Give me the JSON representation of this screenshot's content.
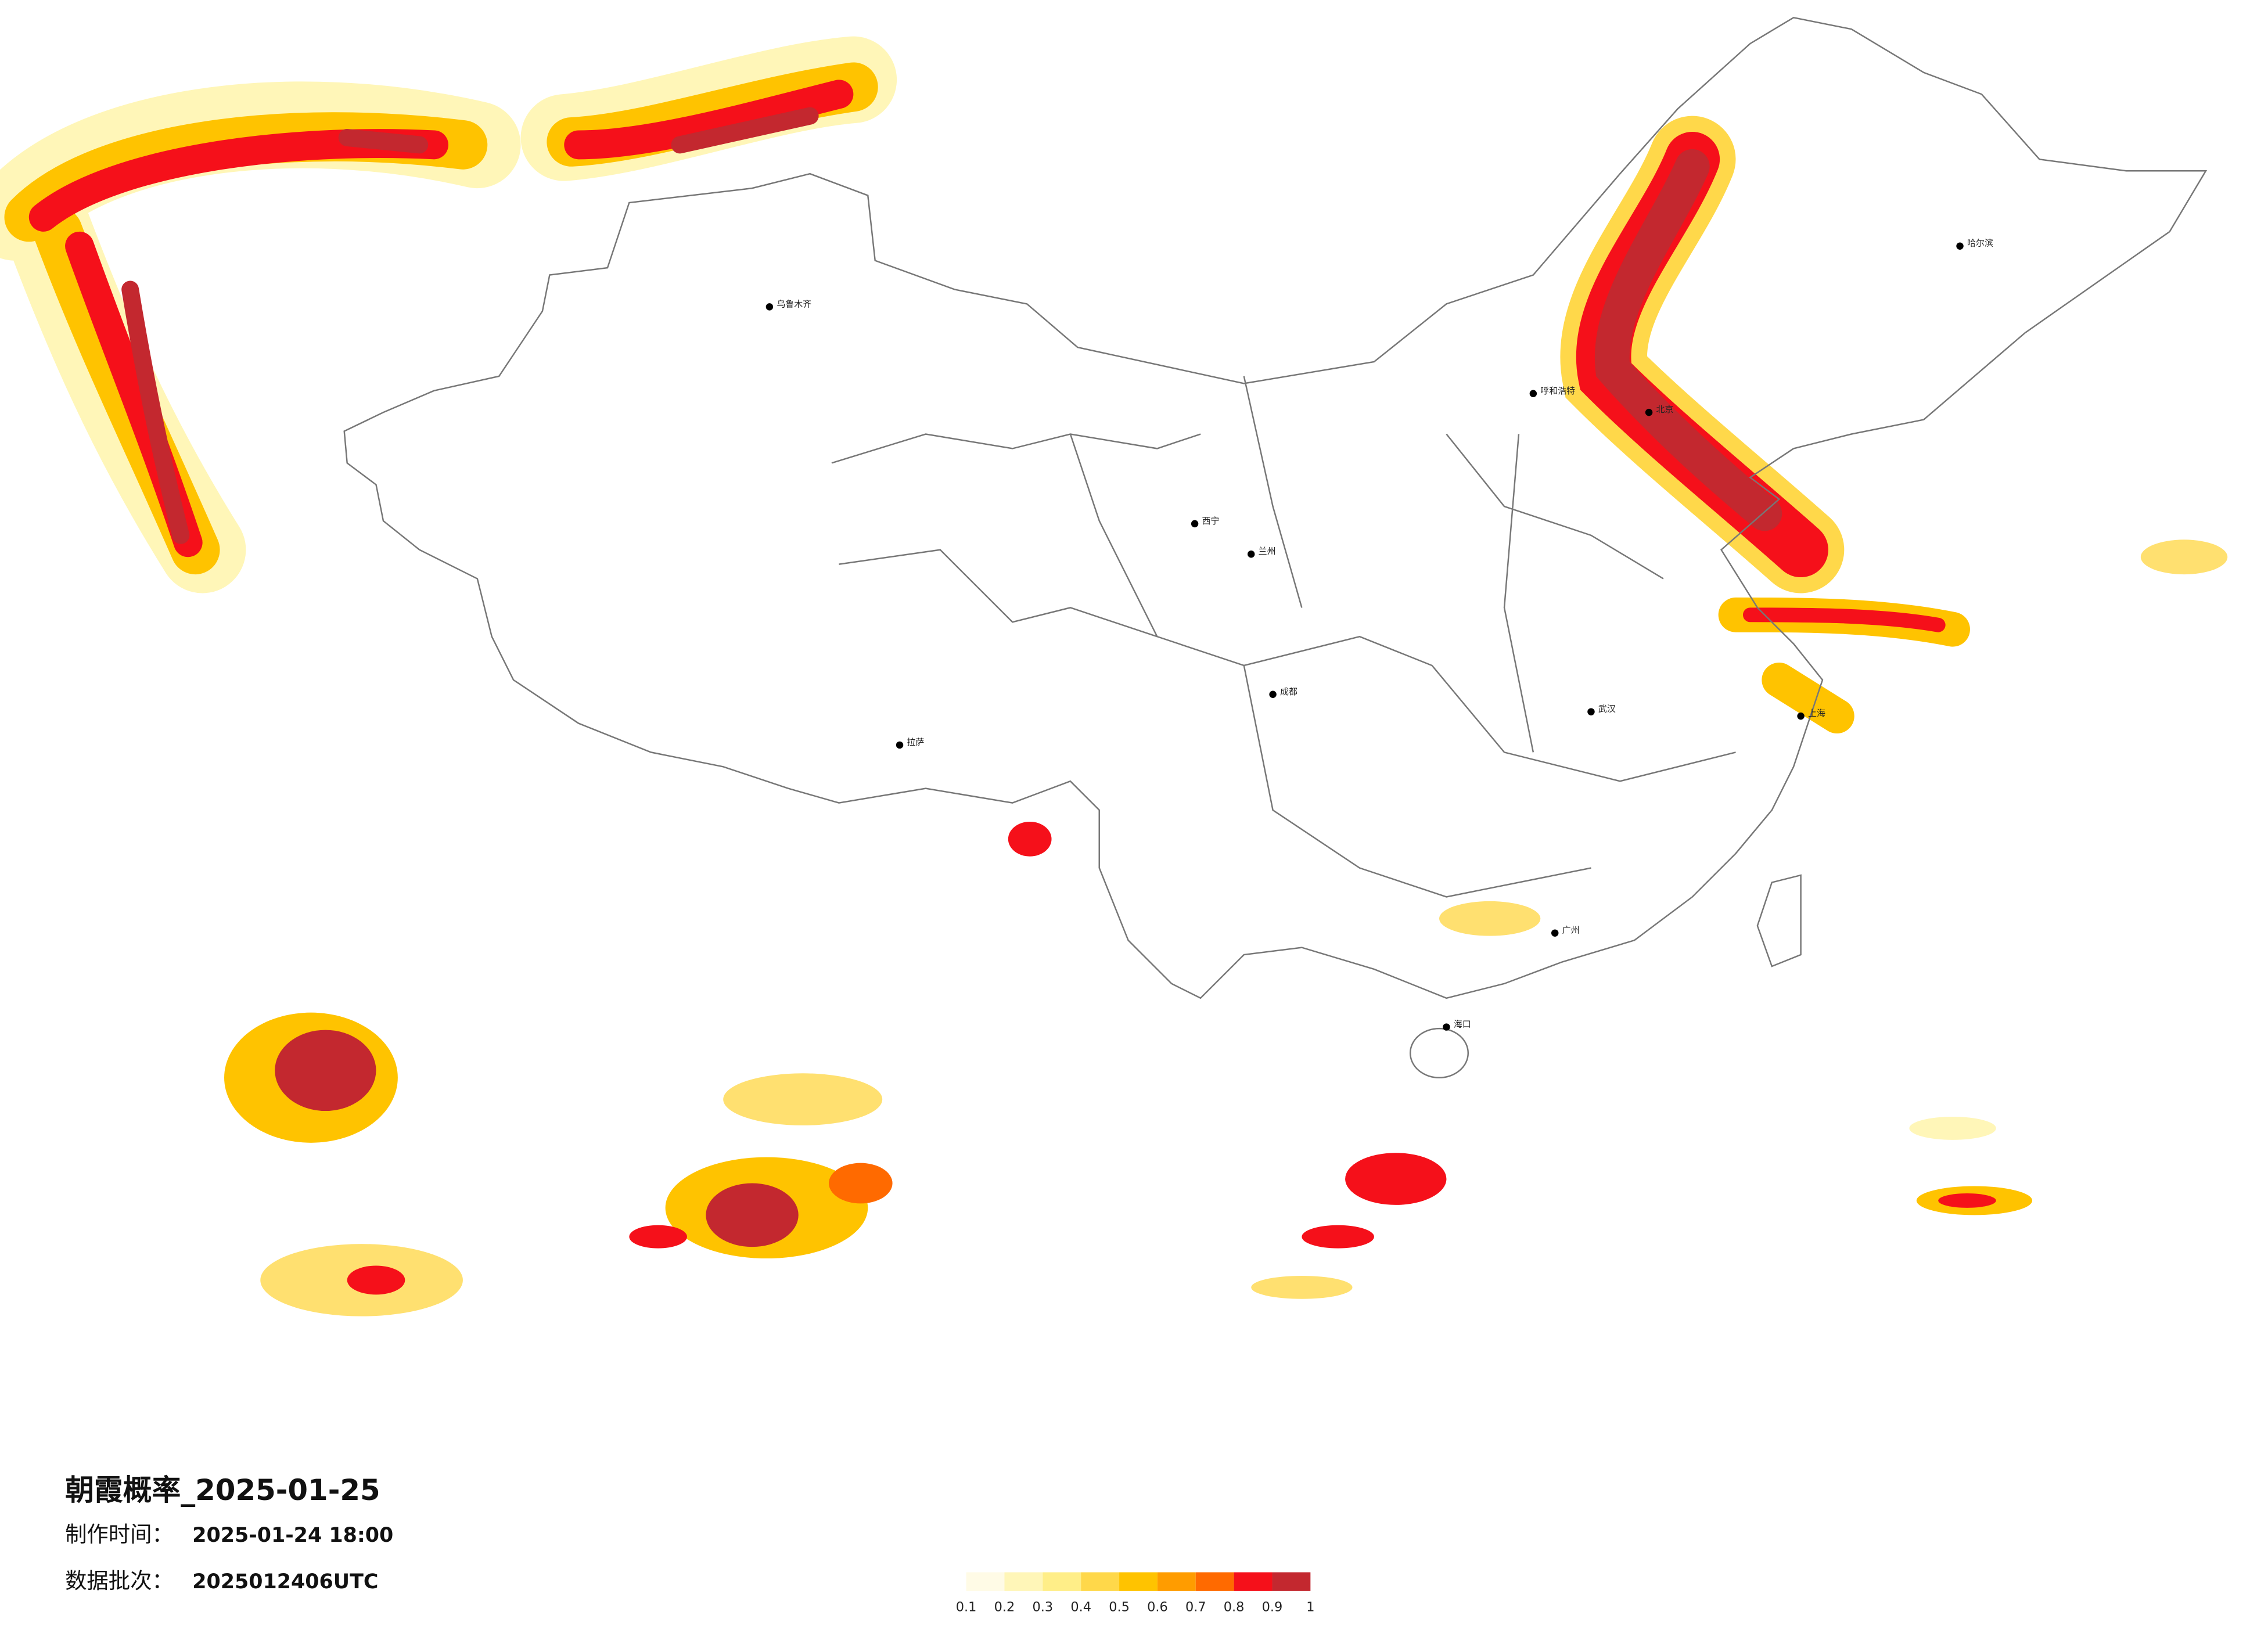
{
  "header": {
    "title": "朝霞概率_2025-01-25"
  },
  "info": [
    {
      "label": "制作时间：",
      "value": "2025-01-24 18:00"
    },
    {
      "label": "数据批次：",
      "value": "2025012406UTC"
    }
  ],
  "legend": {
    "ticks": [
      0.1,
      0.2,
      0.3,
      0.4,
      0.5,
      0.6,
      0.7,
      0.8,
      0.9,
      1
    ],
    "colors": [
      "#fffbe6",
      "#fff6b8",
      "#ffee88",
      "#ffd84a",
      "#ffc300",
      "#ff9c00",
      "#ff6a00",
      "#f5101a",
      "#c3282f"
    ]
  },
  "cities": [
    "乌鲁木齐",
    "拉萨",
    "西宁",
    "兰州",
    "呼和浩特",
    "北京",
    "上海",
    "广州",
    "哈尔滨",
    "海口",
    "成都",
    "武汉"
  ]
}
